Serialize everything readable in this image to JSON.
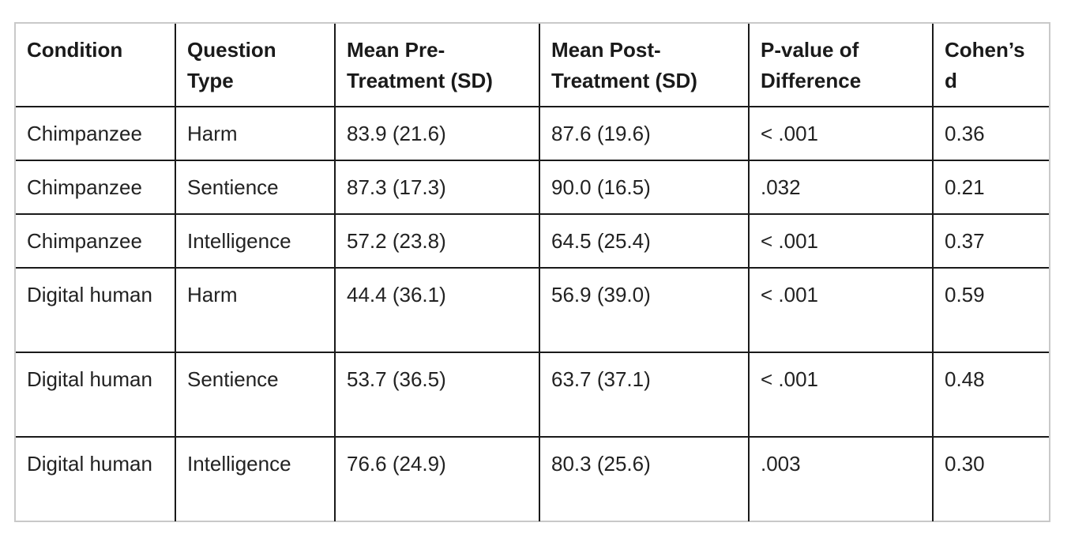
{
  "table": {
    "headers": [
      "Condition",
      "Question Type",
      "Mean Pre-Treatment (SD)",
      "Mean Post-Treatment (SD)",
      "P-value of Difference",
      "Cohen’s d"
    ],
    "rows": [
      [
        "Chimpanzee",
        "Harm",
        "83.9 (21.6)",
        "87.6 (19.6)",
        "< .001",
        "0.36"
      ],
      [
        "Chimpanzee",
        "Sentience",
        "87.3 (17.3)",
        "90.0 (16.5)",
        ".032",
        "0.21"
      ],
      [
        "Chimpanzee",
        "Intelligence",
        "57.2 (23.8)",
        "64.5 (25.4)",
        "< .001",
        "0.37"
      ],
      [
        "Digital human",
        "Harm",
        "44.4 (36.1)",
        "56.9 (39.0)",
        "< .001",
        "0.59"
      ],
      [
        "Digital human",
        "Sentience",
        "53.7 (36.5)",
        "63.7 (37.1)",
        "< .001",
        "0.48"
      ],
      [
        "Digital human",
        "Intelligence",
        "76.6 (24.9)",
        "80.3 (25.6)",
        ".003",
        "0.30"
      ]
    ]
  }
}
